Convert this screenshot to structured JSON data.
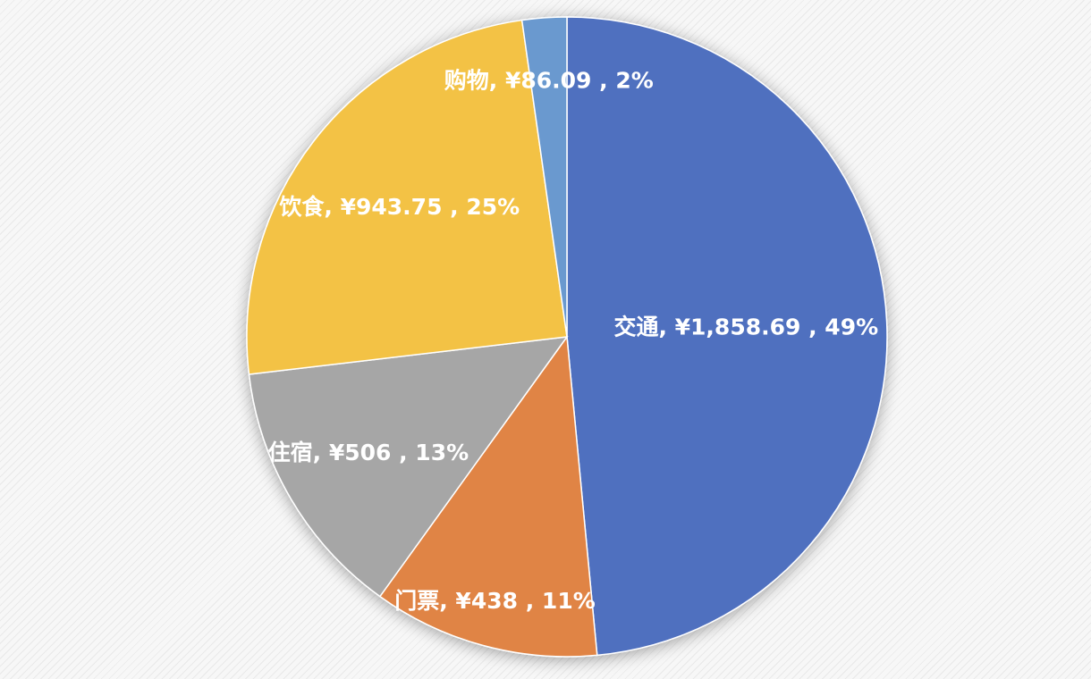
{
  "chart_data": {
    "type": "pie",
    "title": "",
    "start_angle_deg": 0,
    "direction": "clockwise",
    "legend": "none",
    "slices": [
      {
        "label": "交通",
        "value": 1858.69,
        "value_text": "¥1,858.69",
        "percent_text": "49%",
        "color": "#5070BF"
      },
      {
        "label": "门票",
        "value": 438,
        "value_text": "¥438",
        "percent_text": "11%",
        "color": "#E08444"
      },
      {
        "label": "住宿",
        "value": 506,
        "value_text": "¥506",
        "percent_text": "13%",
        "color": "#A6A6A6"
      },
      {
        "label": "饮食",
        "value": 943.75,
        "value_text": "¥943.75",
        "percent_text": "25%",
        "color": "#F3C244"
      },
      {
        "label": "购物",
        "value": 86.09,
        "value_text": "¥86.09",
        "percent_text": "2%",
        "color": "#6A99CF"
      }
    ]
  }
}
